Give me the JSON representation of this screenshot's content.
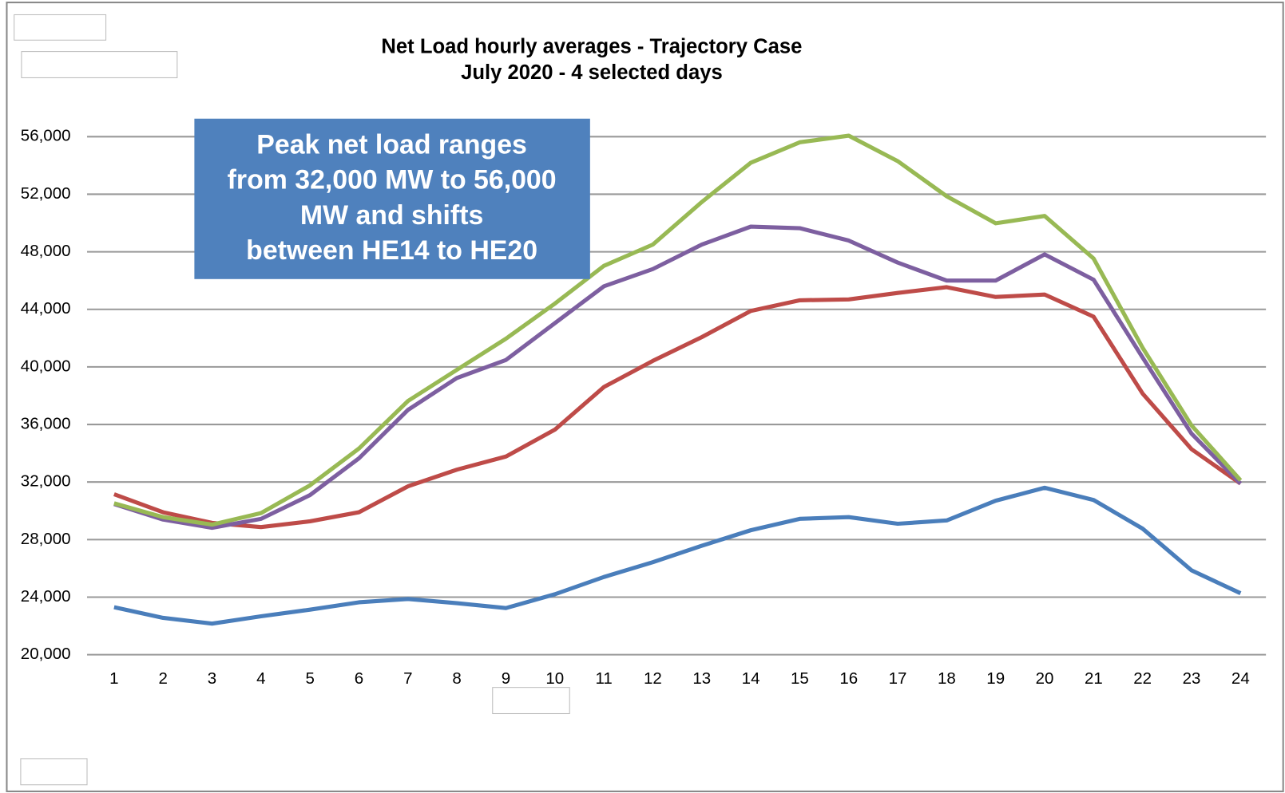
{
  "chart_data": {
    "type": "line",
    "title": "Net Load hourly averages  - Trajectory Case",
    "subtitle": "July 2020   -  4 selected days",
    "annotation": [
      "Peak net load ranges",
      "from 32,000 MW to 56,000",
      "MW and shifts",
      "between HE14 to HE20"
    ],
    "categories": [
      1,
      2,
      3,
      4,
      5,
      6,
      7,
      8,
      9,
      10,
      11,
      12,
      13,
      14,
      15,
      16,
      17,
      18,
      19,
      20,
      21,
      22,
      23,
      24
    ],
    "ylim": [
      20000,
      56000
    ],
    "yticks": [
      {
        "value": 20000,
        "label": "20,000"
      },
      {
        "value": 24000,
        "label": "24,000"
      },
      {
        "value": 28000,
        "label": "28,000"
      },
      {
        "value": 32000,
        "label": "32,000"
      },
      {
        "value": 36000,
        "label": "36,000"
      },
      {
        "value": 40000,
        "label": "40,000"
      },
      {
        "value": 44000,
        "label": "44,000"
      },
      {
        "value": 48000,
        "label": "48,000"
      },
      {
        "value": 52000,
        "label": "52,000"
      },
      {
        "value": 56000,
        "label": "56,000"
      }
    ],
    "grid": true,
    "series": [
      {
        "color": "#4a7ebb",
        "values": [
          23300,
          22560,
          22160,
          22670,
          23130,
          23640,
          23870,
          23580,
          23240,
          24200,
          25400,
          26430,
          27570,
          28650,
          29440,
          29560,
          29100,
          29330,
          30700,
          31600,
          30750,
          28760,
          25860,
          24270
        ]
      },
      {
        "color": "#be4b48",
        "values": [
          31150,
          29900,
          29160,
          28870,
          29270,
          29900,
          31700,
          32860,
          33770,
          35640,
          38600,
          40420,
          42070,
          43890,
          44630,
          44690,
          45140,
          45540,
          44860,
          45030,
          43490,
          38150,
          34280,
          31890
        ]
      },
      {
        "color": "#7d5fa0",
        "values": [
          30470,
          29390,
          28820,
          29440,
          31090,
          33650,
          37010,
          39230,
          40480,
          43040,
          45600,
          46800,
          48500,
          49750,
          49640,
          48780,
          47250,
          46000,
          46000,
          47820,
          46060,
          40650,
          35360,
          31890
        ]
      },
      {
        "color": "#98b954",
        "values": [
          30520,
          29560,
          29040,
          29840,
          31770,
          34330,
          37630,
          39800,
          41960,
          44400,
          47020,
          48500,
          51460,
          54190,
          55610,
          56070,
          54300,
          51860,
          49980,
          50490,
          47530,
          41330,
          35930,
          32120
        ]
      }
    ]
  }
}
